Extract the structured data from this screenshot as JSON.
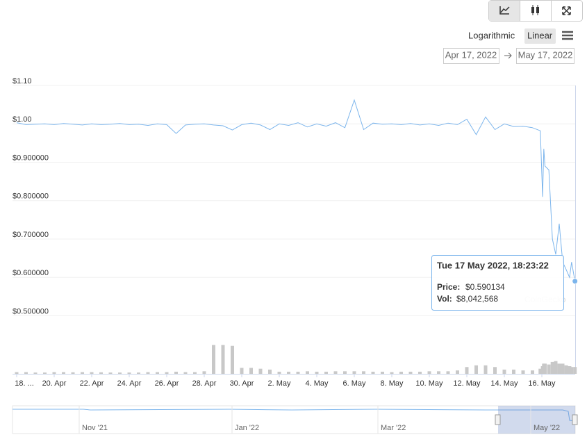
{
  "chart_data": {
    "type": "line",
    "scale_options": [
      "Logarithmic",
      "Linear"
    ],
    "log_scale": false,
    "range_from": "Apr 17, 2022",
    "range_to": "May 17, 2022",
    "xlim": [
      "2022-04-17T18:40",
      "2022-05-17T18:40"
    ],
    "xticks": [
      {
        "value": "2022-04-18T00:00",
        "label": "18. ..."
      },
      {
        "value": "2022-04-20T00:00",
        "label": "20. Apr"
      },
      {
        "value": "2022-04-22T00:00",
        "label": "22. Apr"
      },
      {
        "value": "2022-04-24T00:00",
        "label": "24. Apr"
      },
      {
        "value": "2022-04-26T00:00",
        "label": "26. Apr"
      },
      {
        "value": "2022-04-28T00:00",
        "label": "28. Apr"
      },
      {
        "value": "2022-04-30T00:00",
        "label": "30. Apr"
      },
      {
        "value": "2022-05-02T00:00",
        "label": "2. May"
      },
      {
        "value": "2022-05-04T00:00",
        "label": "4. May"
      },
      {
        "value": "2022-05-06T00:00",
        "label": "6. May"
      },
      {
        "value": "2022-05-08T00:00",
        "label": "8. May"
      },
      {
        "value": "2022-05-10T00:00",
        "label": "10. May"
      },
      {
        "value": "2022-05-12T00:00",
        "label": "12. May"
      },
      {
        "value": "2022-05-14T00:00",
        "label": "14. May"
      },
      {
        "value": "2022-05-16T00:00",
        "label": "16. May"
      }
    ],
    "ylim": [
      0.349,
      1.1
    ],
    "yticks": [
      {
        "value": 1.1,
        "label": "$1.10"
      },
      {
        "value": 1.0,
        "label": "$1.00"
      },
      {
        "value": 0.9,
        "label": "$0.900000"
      },
      {
        "value": 0.8,
        "label": "$0.800000"
      },
      {
        "value": 0.7,
        "label": "$0.700000"
      },
      {
        "value": 0.6,
        "label": "$0.600000"
      },
      {
        "value": 0.5,
        "label": "$0.500000"
      }
    ],
    "y2lim": [
      0,
      340000000
    ],
    "grid": true,
    "x": [
      "2022-04-18T00:00",
      "2022-04-18T12:00",
      "2022-04-19T00:00",
      "2022-04-19T12:00",
      "2022-04-20T00:00",
      "2022-04-20T12:00",
      "2022-04-21T00:00",
      "2022-04-21T12:00",
      "2022-04-22T00:00",
      "2022-04-22T12:00",
      "2022-04-23T00:00",
      "2022-04-23T12:00",
      "2022-04-24T00:00",
      "2022-04-24T12:00",
      "2022-04-25T00:00",
      "2022-04-25T12:00",
      "2022-04-26T00:00",
      "2022-04-26T12:00",
      "2022-04-27T00:00",
      "2022-04-27T12:00",
      "2022-04-28T00:00",
      "2022-04-28T12:00",
      "2022-04-29T00:00",
      "2022-04-29T12:00",
      "2022-04-30T00:00",
      "2022-04-30T12:00",
      "2022-05-01T00:00",
      "2022-05-01T12:00",
      "2022-05-02T00:00",
      "2022-05-02T12:00",
      "2022-05-03T00:00",
      "2022-05-03T12:00",
      "2022-05-04T00:00",
      "2022-05-04T12:00",
      "2022-05-05T00:00",
      "2022-05-05T12:00",
      "2022-05-06T00:00",
      "2022-05-06T12:00",
      "2022-05-07T00:00",
      "2022-05-07T12:00",
      "2022-05-08T00:00",
      "2022-05-08T12:00",
      "2022-05-09T00:00",
      "2022-05-09T12:00",
      "2022-05-10T00:00",
      "2022-05-10T12:00",
      "2022-05-11T00:00",
      "2022-05-11T12:00",
      "2022-05-12T00:00",
      "2022-05-12T12:00",
      "2022-05-13T00:00",
      "2022-05-13T12:00",
      "2022-05-14T00:00",
      "2022-05-14T12:00",
      "2022-05-15T00:00",
      "2022-05-15T12:00",
      "2022-05-15T22:00",
      "2022-05-16T01:00",
      "2022-05-16T02:30",
      "2022-05-16T04:00",
      "2022-05-16T09:00",
      "2022-05-16T13:30",
      "2022-05-16T17:45",
      "2022-05-16T22:15",
      "2022-05-17T02:40",
      "2022-05-17T07:10",
      "2022-05-17T11:30",
      "2022-05-17T14:00",
      "2022-05-17T18:23:22"
    ],
    "series": [
      {
        "name": "Price",
        "color": "#7cb5ec",
        "values": [
          1.003,
          0.998,
          0.999,
          1.0,
          0.998,
          1.001,
          0.999,
          0.997,
          1.0,
          0.998,
          0.999,
          1.001,
          0.998,
          0.999,
          0.996,
          1.0,
          0.998,
          0.975,
          0.997,
          0.999,
          1.0,
          0.997,
          0.995,
          0.984,
          0.998,
          1.002,
          0.997,
          0.985,
          1.0,
          0.996,
          1.003,
          0.992,
          1.0,
          0.994,
          1.003,
          0.99,
          1.062,
          0.985,
          1.002,
          0.999,
          1.0,
          0.998,
          1.001,
          0.997,
          1.0,
          0.996,
          1.002,
          0.998,
          1.012,
          0.972,
          1.018,
          0.985,
          1.0,
          0.993,
          0.994,
          0.99,
          0.982,
          0.81,
          0.935,
          0.89,
          0.88,
          0.7,
          0.66,
          0.74,
          0.64,
          0.62,
          0.6,
          0.64,
          0.590134
        ]
      },
      {
        "name": "Vol",
        "color": "#c8c8c8",
        "axis": "y2",
        "values": [
          2000000,
          2000000,
          1500000,
          1500000,
          2000000,
          2000000,
          1800000,
          2000000,
          2000000,
          1800000,
          1500000,
          1500000,
          1500000,
          1500000,
          2000000,
          2000000,
          2000000,
          2500000,
          2000000,
          2000000,
          3000000,
          34000000,
          34000000,
          33000000,
          7000000,
          7000000,
          6000000,
          5000000,
          2500000,
          2500000,
          2500000,
          3000000,
          2500000,
          2500000,
          3000000,
          3000000,
          3000000,
          3000000,
          2500000,
          2500000,
          2000000,
          2500000,
          2500000,
          2500000,
          3000000,
          3000000,
          3000000,
          4000000,
          8000000,
          10000000,
          10000000,
          8000000,
          5000000,
          5000000,
          4000000,
          4000000,
          6000000,
          9000000,
          12000000,
          12000000,
          11000000,
          14000000,
          15000000,
          12000000,
          12000000,
          10000000,
          9000000,
          8000000,
          8042568
        ]
      }
    ],
    "tooltip": {
      "date": "Tue 17 May 2022, 18:23:22",
      "price_label": "Price:",
      "price": "$0.590134",
      "vol_label": "Vol:",
      "vol": "$8,042,568"
    },
    "watermark": "CoinGecko",
    "navigator_labels": [
      "Nov '21",
      "Jan '22",
      "Mar '22",
      "May '22"
    ]
  }
}
